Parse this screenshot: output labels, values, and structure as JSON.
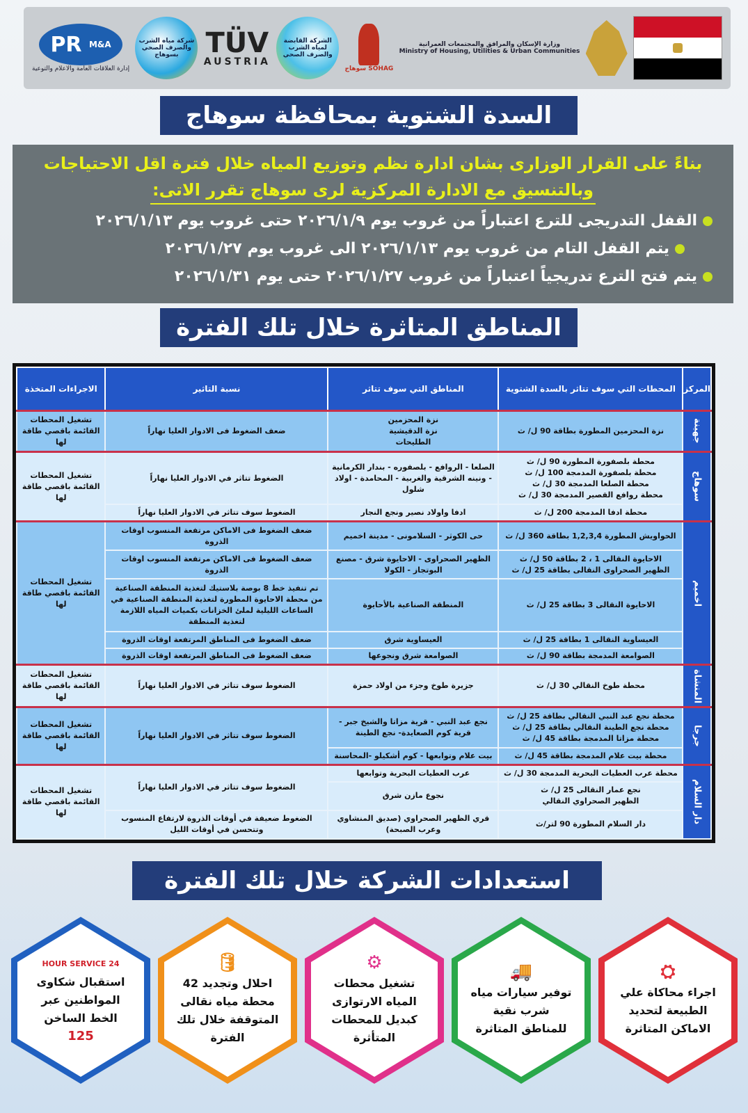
{
  "logos": {
    "pr": "PR",
    "pr_sub": "M&A",
    "pr_caption": "إدارة العلاقات العامة والاعلام والتوعية",
    "sohag_company": "شركة مياه الشرب والصرف الصحي بسوهاج",
    "tuv": "TÜV",
    "tuv_sub": "AUSTRIA",
    "holding": "الشركة القابضة لمياه الشرب والصرف الصحي",
    "sohag_gov": "سوهاج SOHAG",
    "ministry_ar": "وزارة الإسكان والمرافق والمجتمعات العمرانية",
    "ministry_en": "Ministry of Housing, Utilities & Urban Communities"
  },
  "flag_colors": [
    "#ce1126",
    "#ffffff",
    "#000000"
  ],
  "title1": "السدة الشتوية بمحافظة سوهاج",
  "decree": {
    "line1": "بناءً على القرار الوزارى بشان ادارة نظم وتوزيع المياه خلال فترة اقل الاحتياجات",
    "line2": "وبالتنسيق مع الادارة المركزية لرى سوهاج تقرر الاتى:",
    "bullets": [
      "القفل التدريجى للترع اعتباراً من غروب يوم ٢٠٢٦/١/٩ حتى غروب يوم ٢٠٢٦/١/١٣",
      "يتم القفل التام من غروب يوم ٢٠٢٦/١/١٣ الى غروب يوم ٢٠٢٦/١/٢٧",
      "يتم فتح الترع تدريجياً اعتباراً من غروب ٢٠٢٦/١/٢٧ حتى يوم ٢٠٢٦/١/٣١"
    ]
  },
  "title2": "المناطق المتاثرة خلال تلك الفترة",
  "table": {
    "headers": [
      "المركز",
      "المحطات التي سوف تتاثر بالسدة الشتوية",
      "المناطق التي سوف تتاثر",
      "نسبة التاثير",
      "الاجراءات المتخذة"
    ],
    "groups": [
      {
        "center": "جهينة",
        "action": "تشغيل المحطات القائمة باقصي طاقة لها",
        "rows": [
          {
            "station": "نزة المحزمين المطورة بطاقة 90 ل/ ث",
            "areas": "نزة المحزمين\nنزة الدقيشية\nالطليحات",
            "impact": "ضعف الضغوط فى الادوار العليا نهاراً"
          }
        ]
      },
      {
        "center": "سوهاج",
        "action": "تشغيل المحطات القائمة باقصي طاقة لها",
        "rows": [
          {
            "station": "محطة بلصفورة المطورة 90 ل/ ث\nمحطة بلصفورة المدمجة 100 ل/ ث\nمحطة الصلعا المدمجة 30 ل/ ث\nمحطة روافع القصير المدمجة 30 ل/ ث",
            "areas": "الصلعا - الروافع - بلصفوره - بندار الكرمانية - ونينه الشرقية والغربية - المحامدة - اولاد شلول",
            "impact": "الضغوط تتاثر في الادوار العليا نهاراً"
          },
          {
            "station": "محطة ادفا المدمجة 200 ل/ ث",
            "areas": "ادفا واولاد نصير ونجع النجار",
            "impact": "الضغوط سوف تتاثر في الادوار العليا نهاراً"
          }
        ]
      },
      {
        "center": "اخميم",
        "action": "تشغيل المحطات القائمة باقصي طاقة لها",
        "rows": [
          {
            "station": "الحواويش المطورة 1,2,3,4 بطاقة 360 ل/ ث",
            "areas": "حى الكوثر - السلامونى - مدينة اخميم",
            "impact": "ضعف الضغوط فى الاماكن مرتفعة المنسوب اوقات الذروة"
          },
          {
            "station": "الاحايوة النقالى 1 ، 2 بطاقة 50 ل/ ث\nالظهير الصحراوى النقالى بطاقة 25 ل/ ث",
            "areas": "الظهير الصحراوى - الاحايوة شرق - مصنع البوتجاز - الكولا",
            "impact": "ضعف الضغوط فى الاماكن مرتفعة المنسوب اوقات الذروة"
          },
          {
            "station": "الاحايوة النقالى 3 بطاقة 25 ل/ ث",
            "areas": "المنطقة الصناعية بالأحايوة",
            "impact": "تم تنفيذ خط 8 بوصة بلاستيك لتغذية المنطقة الصناعية من محطة الاحايوة المطورة لتغذية المنطقة الصناعية في الساعات الليلية لملئ الخزانات بكميات المياه اللازمة لتغذية المنطقة"
          },
          {
            "station": "العيساوية النقالى 1 بطاقة 25 ل/ ث",
            "areas": "العيساوية شرق",
            "impact": "ضعف الضغوط فى المناطق المرتفعة اوقات الذروة"
          },
          {
            "station": "الصوامعة المدمجة بطاقة 90 ل/ ث",
            "areas": "الصوامعة شرق ونجوعها",
            "impact": "ضعف الضغوط فى المناطق المرتفعة اوقات الذروة"
          }
        ]
      },
      {
        "center": "المنشاة",
        "action": "تشغيل المحطات القائمة باقصي طاقة لها",
        "rows": [
          {
            "station": "محطة طوخ النقالي 30 ل/ ث",
            "areas": "جزيرة طوخ وجزء من اولاد حمزة",
            "impact": "الضغوط سوف تتاثر في الادوار العليا نهاراً"
          }
        ]
      },
      {
        "center": "جرجا",
        "action": "تشغيل المحطات القائمة باقصي طاقة لها",
        "rows": [
          {
            "station": "محطة نجع عبد النبي النقالي بطاقة 25 ل/ ث\nمحطة نجع الطينة النقالي بطاقة 25 ل/ ث\nمحطة مزاتا المدمجة بطاقة 45 ل/ ث",
            "areas": "نجع عبد النبي - قرية مزاتا والشيخ جبر - قرية كوم الصعايدة- نجع الطينة",
            "impact": "الضغوط سوف تتاثر في الادوار العليا نهاراً",
            "impact_span": 2
          },
          {
            "station": "محطة بيت علام المدمجة بطاقة 45 ل/ ث",
            "areas": "بيت علام وتوابعها - كوم أشكيلو -المحاسنة"
          }
        ]
      },
      {
        "center": "دار السلام",
        "action": "تشغيل المحطات القائمة باقصي طاقة لها",
        "rows": [
          {
            "station": "محطة عرب العطيات البحرية المدمجة 30 ل/ ث",
            "areas": "عرب العطيات البحرية وتوابعها",
            "impact": "الضغوط سوف تتاثر في الادوار العليا نهاراً",
            "impact_span": 2
          },
          {
            "station": "نجع عمار النقالى 25 ل/ ث\nالظهير الصحراوي النقالي",
            "areas": "نجوع مازن شرق"
          },
          {
            "station": "دار السلام المطورة 90 لتر/ث",
            "areas": "قري الظهير الصحراوي (صديق المنشاوي وعرب الصبحة)",
            "impact": "الضغوط ضعيفة في أوقات الذروة لارتفاع المنسوب وتتحسن في أوقات الليل"
          }
        ]
      }
    ]
  },
  "title3": "استعدادات الشركة خلال تلك الفترة",
  "preparations": [
    {
      "icon": "valve-icon",
      "color": "#e0303a",
      "text": "اجراء محاكاة علي الطبيعة لتحديد الاماكن المتاثرة"
    },
    {
      "icon": "truck-icon",
      "color": "#2aa84a",
      "text": "توفير سيارات مياه شرب نقية للمناطق المتاثرة"
    },
    {
      "icon": "pump-icon",
      "color": "#e0308a",
      "text": "تشغيل محطات المياه الارتوازى كبديل للمحطات المتأثرة"
    },
    {
      "icon": "tank-icon",
      "color": "#f0901a",
      "text": "احلال وتجديد 42 محطة مياه نقالى المتوقفة خلال تلك الفترة"
    },
    {
      "icon": "hotline-icon",
      "color": "#2060c0",
      "text": "استقبال شكاوى المواطنين عبر الخط الساخن",
      "badge": "24 HOUR SERVICE",
      "hotline": "125"
    }
  ]
}
